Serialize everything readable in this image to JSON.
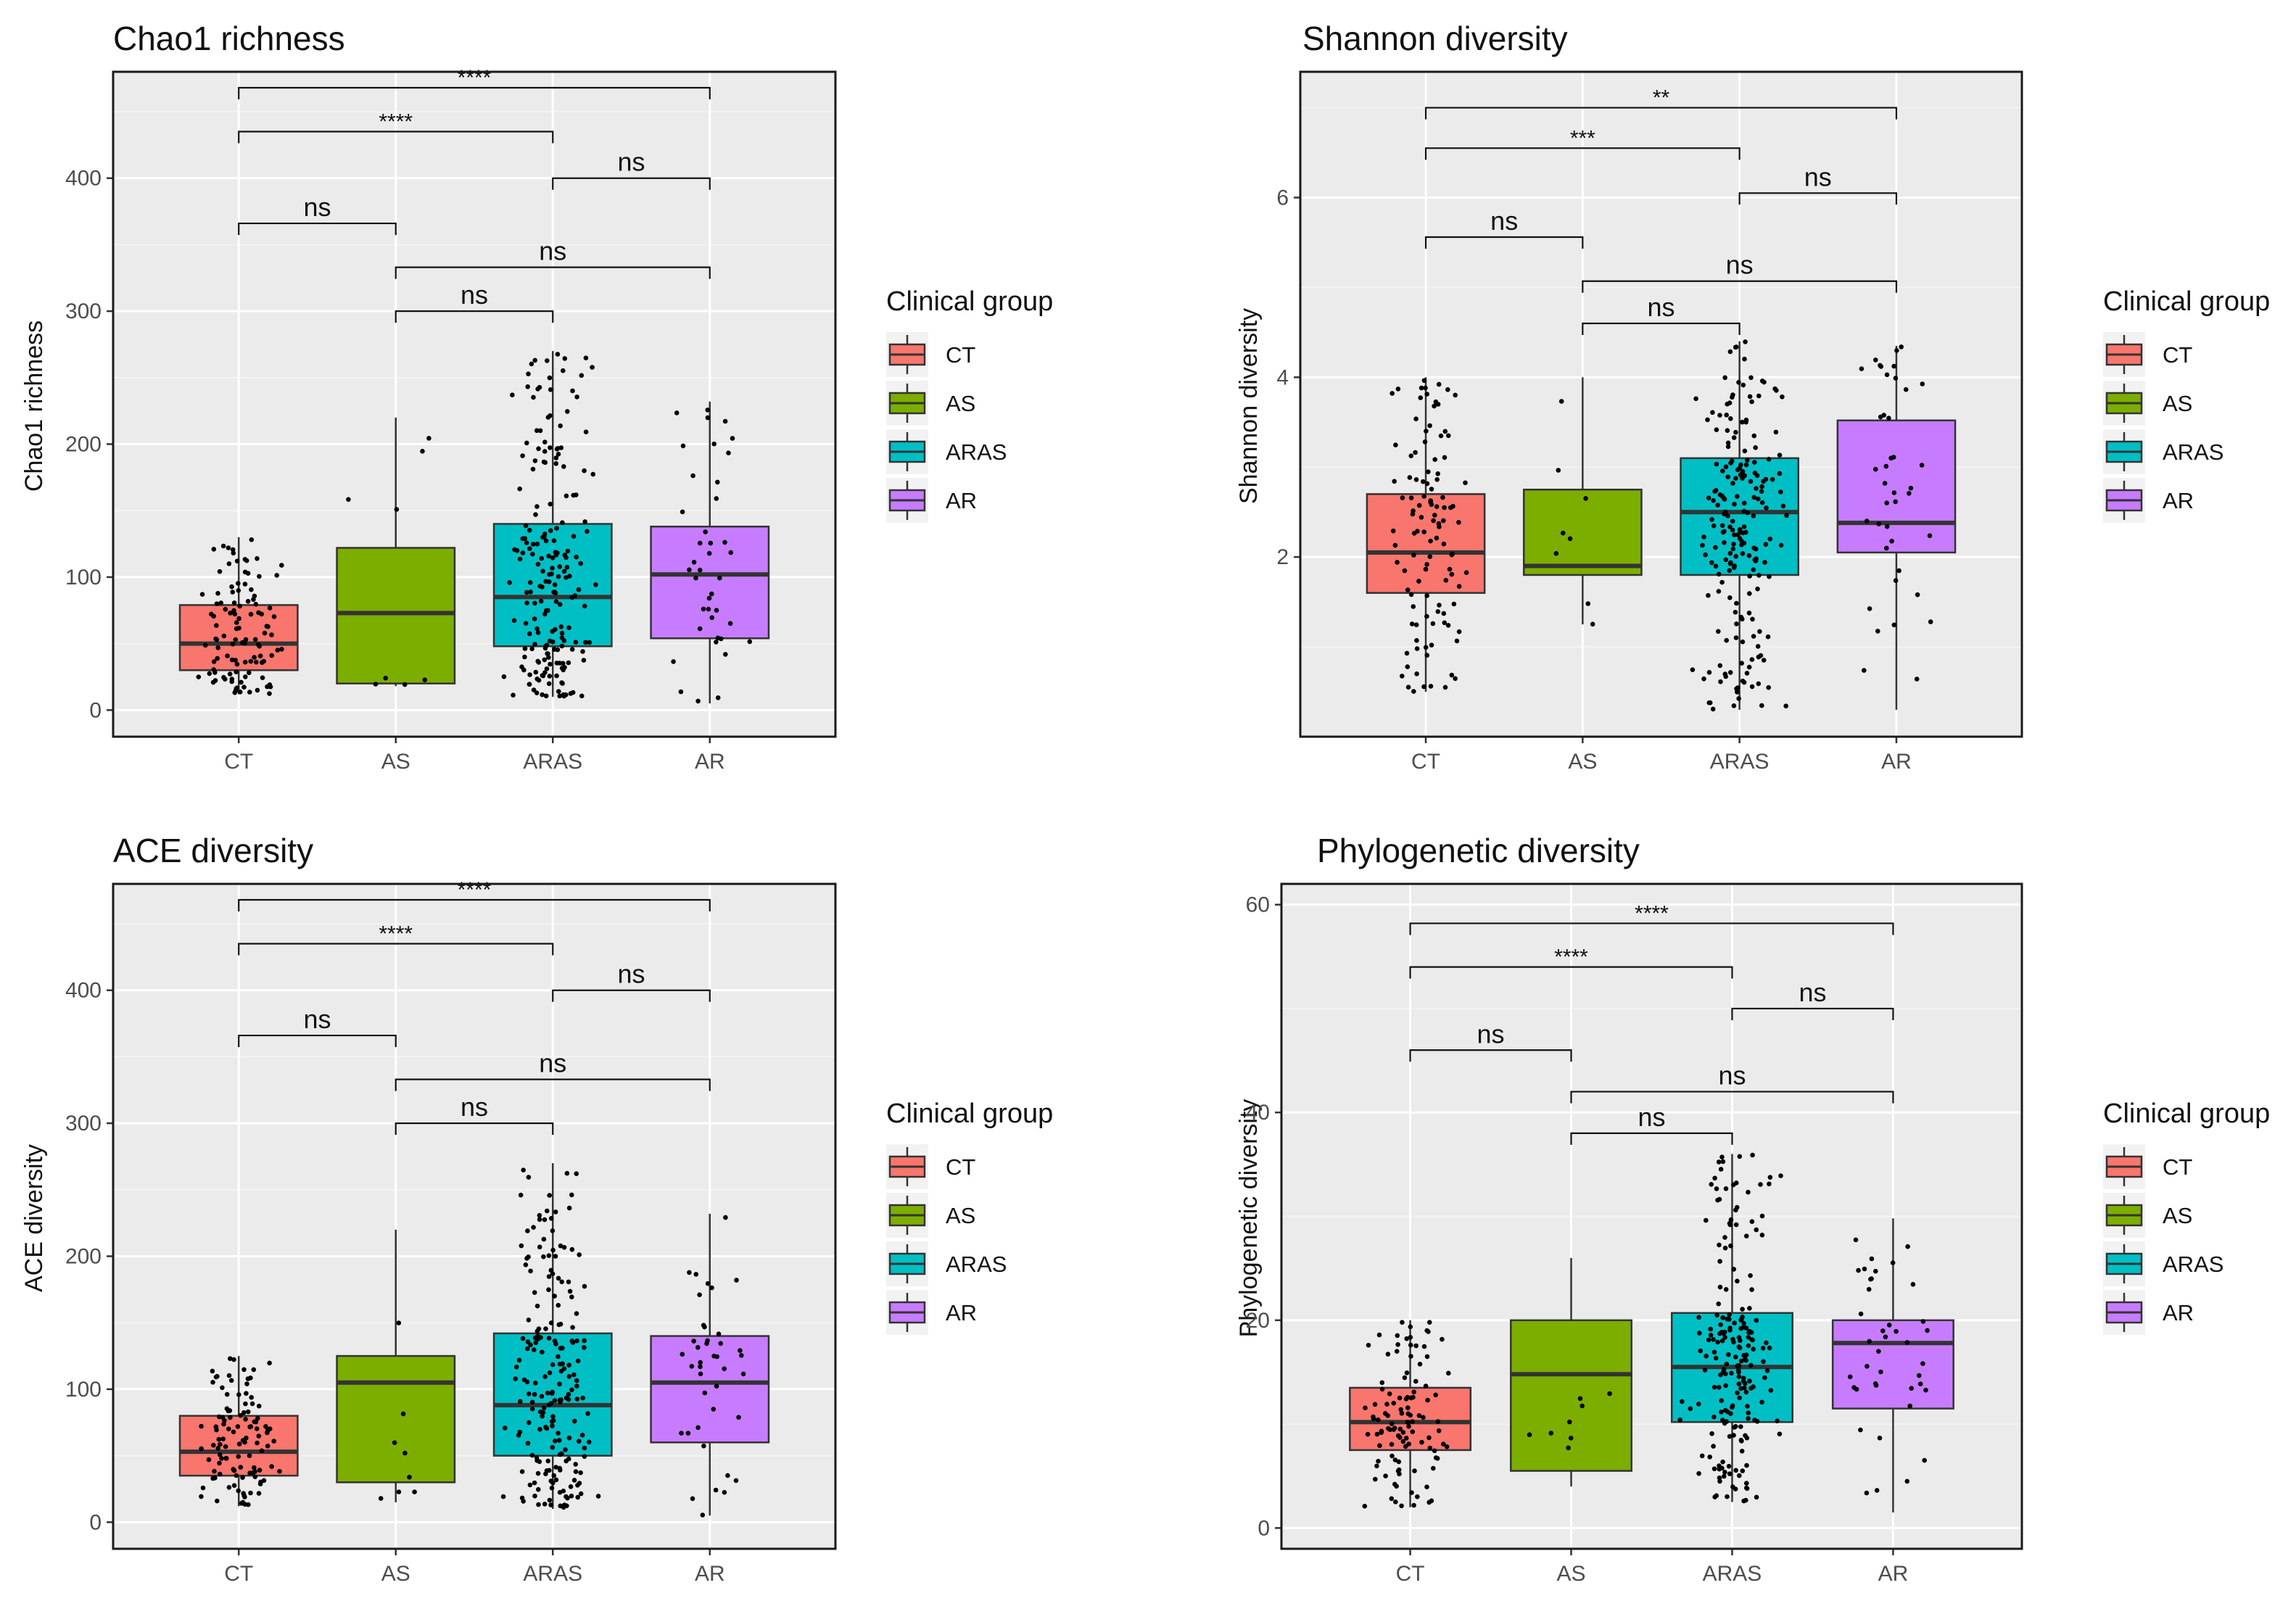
{
  "legend": {
    "title": "Clinical group",
    "entries": [
      {
        "label": "CT",
        "color": "#F8766D"
      },
      {
        "label": "AS",
        "color": "#7CAE00"
      },
      {
        "label": "ARAS",
        "color": "#00BFC4"
      },
      {
        "label": "AR",
        "color": "#C77CFF"
      }
    ]
  },
  "chart_data": [
    {
      "type": "box",
      "title": "Chao1 richness",
      "xlabel": "",
      "ylabel": "Chao1 richness",
      "categories": [
        "CT",
        "AS",
        "ARAS",
        "AR"
      ],
      "ylim": [
        -20,
        480
      ],
      "yticks": [
        0,
        100,
        200,
        300,
        400
      ],
      "boxes": [
        {
          "group": "CT",
          "min": 12,
          "q1": 30,
          "median": 50,
          "q3": 79,
          "max": 130
        },
        {
          "group": "AS",
          "min": 18,
          "q1": 20,
          "median": 73,
          "q3": 122,
          "max": 220
        },
        {
          "group": "ARAS",
          "min": 10,
          "q1": 48,
          "median": 85,
          "q3": 140,
          "max": 270
        },
        {
          "group": "AR",
          "min": 5,
          "q1": 54,
          "median": 102,
          "q3": 138,
          "max": 232
        }
      ],
      "comparisons": [
        {
          "from": "CT",
          "to": "AR",
          "label": "****",
          "y": 468
        },
        {
          "from": "CT",
          "to": "ARAS",
          "label": "****",
          "y": 435
        },
        {
          "from": "ARAS",
          "to": "AR",
          "label": "ns",
          "y": 400
        },
        {
          "from": "CT",
          "to": "AS",
          "label": "ns",
          "y": 366
        },
        {
          "from": "AS",
          "to": "AR",
          "label": "ns",
          "y": 333
        },
        {
          "from": "AS",
          "to": "ARAS",
          "label": "ns",
          "y": 300
        }
      ]
    },
    {
      "type": "box",
      "title": "Shannon diversity",
      "xlabel": "",
      "ylabel": "Shannon diversity",
      "categories": [
        "CT",
        "AS",
        "ARAS",
        "AR"
      ],
      "ylim": [
        0,
        7.4
      ],
      "yticks": [
        2,
        4,
        6
      ],
      "boxes": [
        {
          "group": "CT",
          "min": 0.5,
          "q1": 1.6,
          "median": 2.05,
          "q3": 2.7,
          "max": 4.0
        },
        {
          "group": "AS",
          "min": 1.25,
          "q1": 1.8,
          "median": 1.9,
          "q3": 2.75,
          "max": 4.0
        },
        {
          "group": "ARAS",
          "min": 0.3,
          "q1": 1.8,
          "median": 2.5,
          "q3": 3.1,
          "max": 4.4
        },
        {
          "group": "AR",
          "min": 0.3,
          "q1": 2.05,
          "median": 2.38,
          "q3": 3.52,
          "max": 4.35
        }
      ],
      "comparisons": [
        {
          "from": "CT",
          "to": "AR",
          "label": "**",
          "y": 7.0
        },
        {
          "from": "CT",
          "to": "ARAS",
          "label": "***",
          "y": 6.55
        },
        {
          "from": "ARAS",
          "to": "AR",
          "label": "ns",
          "y": 6.05
        },
        {
          "from": "CT",
          "to": "AS",
          "label": "ns",
          "y": 5.56
        },
        {
          "from": "AS",
          "to": "AR",
          "label": "ns",
          "y": 5.07
        },
        {
          "from": "AS",
          "to": "ARAS",
          "label": "ns",
          "y": 4.6
        }
      ]
    },
    {
      "type": "box",
      "title": "ACE diversity",
      "xlabel": "",
      "ylabel": "ACE diversity",
      "categories": [
        "CT",
        "AS",
        "ARAS",
        "AR"
      ],
      "ylim": [
        -20,
        480
      ],
      "yticks": [
        0,
        100,
        200,
        300,
        400
      ],
      "boxes": [
        {
          "group": "CT",
          "min": 12,
          "q1": 35,
          "median": 53,
          "q3": 80,
          "max": 125
        },
        {
          "group": "AS",
          "min": 15,
          "q1": 30,
          "median": 105,
          "q3": 125,
          "max": 220
        },
        {
          "group": "ARAS",
          "min": 10,
          "q1": 50,
          "median": 88,
          "q3": 142,
          "max": 270
        },
        {
          "group": "AR",
          "min": 5,
          "q1": 60,
          "median": 105,
          "q3": 140,
          "max": 232
        }
      ],
      "comparisons": [
        {
          "from": "CT",
          "to": "AR",
          "label": "****",
          "y": 468
        },
        {
          "from": "CT",
          "to": "ARAS",
          "label": "****",
          "y": 435
        },
        {
          "from": "ARAS",
          "to": "AR",
          "label": "ns",
          "y": 400
        },
        {
          "from": "CT",
          "to": "AS",
          "label": "ns",
          "y": 366
        },
        {
          "from": "AS",
          "to": "AR",
          "label": "ns",
          "y": 333
        },
        {
          "from": "AS",
          "to": "ARAS",
          "label": "ns",
          "y": 300
        }
      ]
    },
    {
      "type": "box",
      "title": "Phylogenetic diversity",
      "xlabel": "",
      "ylabel": "Phylogenetic  diversity",
      "categories": [
        "CT",
        "AS",
        "ARAS",
        "AR"
      ],
      "ylim": [
        -2,
        62
      ],
      "yticks": [
        0,
        20,
        40,
        60
      ],
      "boxes": [
        {
          "group": "CT",
          "min": 2,
          "q1": 7.5,
          "median": 10.2,
          "q3": 13.5,
          "max": 20
        },
        {
          "group": "AS",
          "min": 4,
          "q1": 5.5,
          "median": 14.8,
          "q3": 20,
          "max": 26
        },
        {
          "group": "ARAS",
          "min": 2.5,
          "q1": 10.2,
          "median": 15.5,
          "q3": 20.7,
          "max": 36
        },
        {
          "group": "AR",
          "min": 1.5,
          "q1": 11.5,
          "median": 17.8,
          "q3": 20,
          "max": 29.8
        }
      ],
      "comparisons": [
        {
          "from": "CT",
          "to": "AR",
          "label": "****",
          "y": 58.2
        },
        {
          "from": "CT",
          "to": "ARAS",
          "label": "****",
          "y": 54
        },
        {
          "from": "ARAS",
          "to": "AR",
          "label": "ns",
          "y": 50
        },
        {
          "from": "CT",
          "to": "AS",
          "label": "ns",
          "y": 46
        },
        {
          "from": "AS",
          "to": "AR",
          "label": "ns",
          "y": 42
        },
        {
          "from": "AS",
          "to": "ARAS",
          "label": "ns",
          "y": 38
        }
      ]
    }
  ]
}
